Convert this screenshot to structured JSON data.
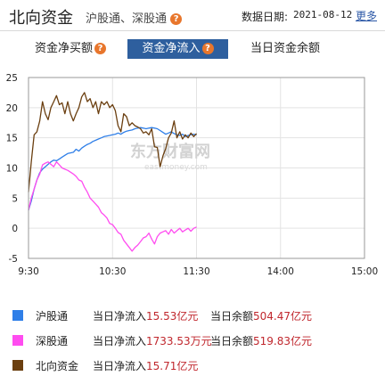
{
  "header": {
    "title": "北向资金",
    "subtitle": "沪股通、深股通",
    "date_label": "数据日期:",
    "date_value": "2021-08-12",
    "more": "更多"
  },
  "tabs": [
    {
      "label": "资金净买额",
      "active": false,
      "help": "?"
    },
    {
      "label": "资金净流入",
      "active": true,
      "help": "?"
    },
    {
      "label": "当日资金余额",
      "active": false
    }
  ],
  "watermark": {
    "text": "东方财富网",
    "sub": "eastmoney.com"
  },
  "chart_data": {
    "type": "line",
    "x_ticks": [
      "9:30",
      "10:30",
      "11:30",
      "14:00",
      "15:00"
    ],
    "y_ticks": [
      25,
      20,
      15,
      10,
      5,
      0,
      -5
    ],
    "ylim": [
      -5,
      25
    ],
    "grid": true,
    "x_minutes": [
      0,
      2,
      4,
      6,
      8,
      10,
      12,
      14,
      16,
      18,
      20,
      22,
      24,
      26,
      28,
      30,
      32,
      34,
      36,
      38,
      40,
      42,
      44,
      46,
      48,
      50,
      52,
      54,
      56,
      58,
      60,
      62,
      64,
      66,
      68,
      70,
      72,
      74,
      76,
      78,
      80,
      82,
      84,
      86,
      88,
      90,
      92,
      94,
      96,
      98,
      100,
      102,
      104,
      106,
      108,
      110,
      112,
      114,
      116,
      118,
      120
    ],
    "series": [
      {
        "name": "沪股通",
        "color": "#2f7fe8",
        "values": [
          3,
          4.5,
          6.5,
          8,
          9.2,
          9.8,
          10.2,
          10.6,
          11,
          11.3,
          11.2,
          11.5,
          11.8,
          12.1,
          12.4,
          12.5,
          12.6,
          13.1,
          12.8,
          13.3,
          13.6,
          13.9,
          14.1,
          14.4,
          14.6,
          14.8,
          15,
          15.2,
          15.3,
          15.4,
          15.5,
          15.6,
          15.8,
          15.6,
          15.9,
          16.1,
          16.2,
          16.3,
          16.5,
          16.6,
          16.7,
          16.6,
          16.5,
          16.6,
          16.7,
          16.6,
          16.5,
          16.2,
          15.9,
          15.6,
          15.8,
          16,
          15.7,
          15.5,
          15.4,
          15.6,
          15.2,
          15.4,
          15.5,
          15.6,
          15.5
        ]
      },
      {
        "name": "深股通",
        "color": "#ff4cf0",
        "values": [
          3,
          5,
          6.5,
          8,
          9,
          10.5,
          10.8,
          11,
          10.6,
          10.2,
          11,
          10.5,
          10,
          9.8,
          9.6,
          9.3,
          9,
          8.6,
          8,
          7.8,
          6.8,
          6,
          5,
          4.5,
          4,
          3.5,
          2.6,
          2.2,
          1.7,
          0.8,
          0.6,
          0,
          -0.7,
          -1,
          -2,
          -2.6,
          -3.2,
          -3.8,
          -3.2,
          -2.8,
          -2.2,
          -1.6,
          -1.4,
          -0.8,
          -1.8,
          -2.6,
          -1.4,
          -0.8,
          -0.6,
          -0.4,
          -1,
          -0.2,
          -0.8,
          -0.4,
          0,
          -0.6,
          -0.3,
          0,
          -0.5,
          0,
          0.2
        ]
      },
      {
        "name": "北向资金",
        "color": "#6b3f10",
        "values": [
          6,
          11,
          15.5,
          16,
          17.8,
          21,
          19,
          18,
          20,
          21,
          22,
          20.5,
          20.8,
          19,
          21,
          19,
          17.8,
          19,
          20,
          21.8,
          22.5,
          21,
          21.5,
          20,
          21,
          19,
          21,
          20.5,
          21,
          20,
          20.5,
          19.5,
          17,
          16,
          19,
          18.5,
          17,
          17.5,
          17,
          16.8,
          16.5,
          15.8,
          16,
          15.5,
          16.5,
          13.5,
          13.4,
          10.2,
          12,
          13.2,
          15,
          15.8,
          17.8,
          15,
          16,
          14.8,
          15.5,
          15,
          15.8,
          15.2,
          15.7
        ]
      }
    ]
  },
  "legend": [
    {
      "name": "沪股通",
      "color": "#2f7fe8",
      "inflow_label": "当日净流入",
      "inflow_value": "15.53亿元",
      "balance_label": "当日余额",
      "balance_value": "504.47亿元"
    },
    {
      "name": "深股通",
      "color": "#ff4cf0",
      "inflow_label": "当日净流入",
      "inflow_value": "1733.53万元",
      "balance_label": "当日余额",
      "balance_value": "519.83亿元"
    },
    {
      "name": "北向资金",
      "color": "#6b3f10",
      "inflow_label": "当日净流入",
      "inflow_value": "15.71亿元"
    }
  ]
}
